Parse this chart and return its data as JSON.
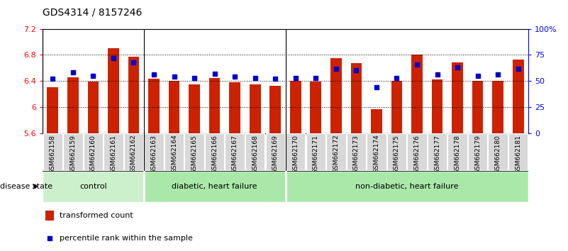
{
  "title": "GDS4314 / 8157246",
  "samples": [
    "GSM662158",
    "GSM662159",
    "GSM662160",
    "GSM662161",
    "GSM662162",
    "GSM662163",
    "GSM662164",
    "GSM662165",
    "GSM662166",
    "GSM662167",
    "GSM662168",
    "GSM662169",
    "GSM662170",
    "GSM662171",
    "GSM662172",
    "GSM662173",
    "GSM662174",
    "GSM662175",
    "GSM662176",
    "GSM662177",
    "GSM662178",
    "GSM662179",
    "GSM662180",
    "GSM662181"
  ],
  "bar_values": [
    6.3,
    6.46,
    6.39,
    6.9,
    6.77,
    6.43,
    6.4,
    6.35,
    6.44,
    6.38,
    6.35,
    6.33,
    6.4,
    6.39,
    6.75,
    6.67,
    5.97,
    6.4,
    6.8,
    6.42,
    6.68,
    6.4,
    6.4,
    6.73
  ],
  "blue_values": [
    52,
    58,
    55,
    72,
    68,
    56,
    54,
    53,
    57,
    54,
    53,
    52,
    53,
    53,
    62,
    60,
    44,
    53,
    66,
    56,
    63,
    55,
    56,
    62
  ],
  "group_labels": [
    "control",
    "diabetic, heart failure",
    "non-diabetic, heart failure"
  ],
  "group_ranges": [
    [
      0,
      5
    ],
    [
      5,
      12
    ],
    [
      12,
      24
    ]
  ],
  "group_colors": [
    "#ccf0cc",
    "#aae8aa",
    "#aae8aa"
  ],
  "group_dividers": [
    5,
    12
  ],
  "ylim_left": [
    5.6,
    7.2
  ],
  "ylim_right": [
    0,
    100
  ],
  "yticks_left": [
    5.6,
    6.0,
    6.4,
    6.8,
    7.2
  ],
  "ytick_labels_left": [
    "5.6",
    "6",
    "6.4",
    "6.8",
    "7.2"
  ],
  "yticks_right": [
    0,
    25,
    50,
    75,
    100
  ],
  "ytick_labels_right": [
    "0",
    "25",
    "50",
    "75",
    "100%"
  ],
  "bar_color": "#cc2200",
  "blue_color": "#0000cc",
  "xtick_bg_color": "#d8d8d8",
  "label_fontsize": 8,
  "title_fontsize": 10
}
